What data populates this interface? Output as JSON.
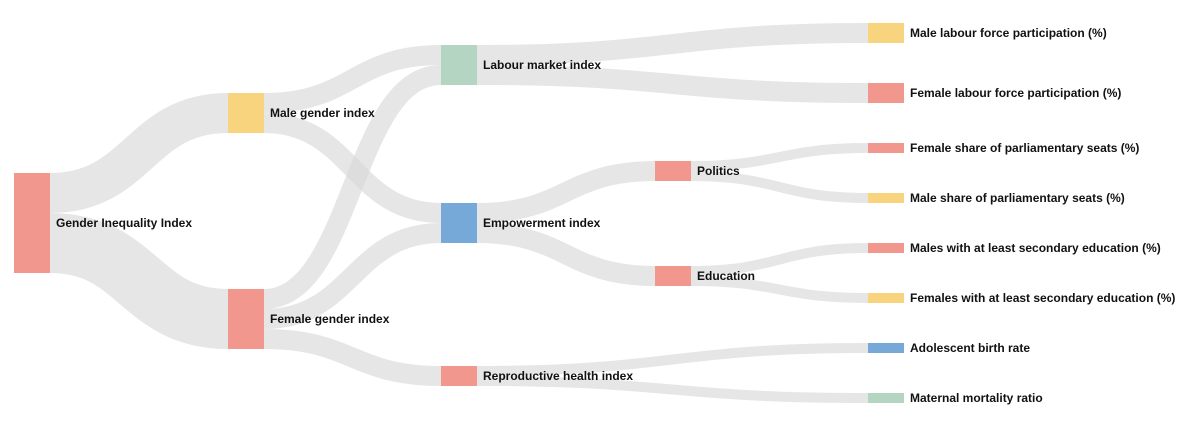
{
  "colors": {
    "red": "#f2978d",
    "yellow": "#f8d47e",
    "green": "#b5d5c3",
    "blue": "#76a8d8",
    "link": "#d6d6d6"
  },
  "nodes": [
    {
      "id": "gii",
      "label": "Gender Inequality Index",
      "color": "red"
    },
    {
      "id": "male",
      "label": "Male gender index",
      "color": "yellow"
    },
    {
      "id": "female",
      "label": "Female gender index",
      "color": "red"
    },
    {
      "id": "labour",
      "label": "Labour market index",
      "color": "green"
    },
    {
      "id": "empower",
      "label": "Empowerment index",
      "color": "blue"
    },
    {
      "id": "repro",
      "label": "Reproductive health index",
      "color": "red"
    },
    {
      "id": "politics",
      "label": "Politics",
      "color": "red"
    },
    {
      "id": "education",
      "label": "Education",
      "color": "red"
    },
    {
      "id": "mlfp",
      "label": "Male labour force participation (%)",
      "color": "yellow"
    },
    {
      "id": "flfp",
      "label": "Female labour force participation (%)",
      "color": "red"
    },
    {
      "id": "fsps",
      "label": "Female share of parliamentary seats (%)",
      "color": "red"
    },
    {
      "id": "msps",
      "label": "Male share of parliamentary seats (%)",
      "color": "yellow"
    },
    {
      "id": "msec",
      "label": "Males with at least secondary education (%)",
      "color": "red"
    },
    {
      "id": "fsec",
      "label": "Females with at least secondary education (%)",
      "color": "yellow"
    },
    {
      "id": "abr",
      "label": "Adolescent birth rate",
      "color": "blue"
    },
    {
      "id": "mmr",
      "label": "Maternal mortality ratio",
      "color": "green"
    }
  ],
  "links": [
    {
      "source": "gii",
      "target": "male",
      "value": 2
    },
    {
      "source": "gii",
      "target": "female",
      "value": 3
    },
    {
      "source": "male",
      "target": "labour",
      "value": 1
    },
    {
      "source": "male",
      "target": "empower",
      "value": 1
    },
    {
      "source": "female",
      "target": "labour",
      "value": 1
    },
    {
      "source": "female",
      "target": "empower",
      "value": 1
    },
    {
      "source": "female",
      "target": "repro",
      "value": 1
    },
    {
      "source": "labour",
      "target": "mlfp",
      "value": 1
    },
    {
      "source": "labour",
      "target": "flfp",
      "value": 1
    },
    {
      "source": "empower",
      "target": "politics",
      "value": 1
    },
    {
      "source": "empower",
      "target": "education",
      "value": 1
    },
    {
      "source": "politics",
      "target": "fsps",
      "value": 0.5
    },
    {
      "source": "politics",
      "target": "msps",
      "value": 0.5
    },
    {
      "source": "education",
      "target": "msec",
      "value": 0.5
    },
    {
      "source": "education",
      "target": "fsec",
      "value": 0.5
    },
    {
      "source": "repro",
      "target": "abr",
      "value": 0.5
    },
    {
      "source": "repro",
      "target": "mmr",
      "value": 0.5
    }
  ]
}
